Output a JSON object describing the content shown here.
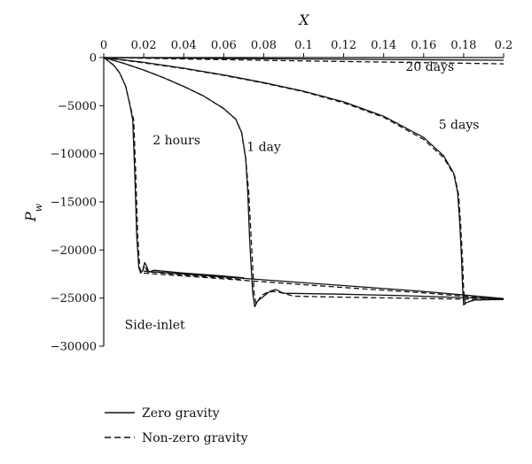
{
  "chart_data": {
    "type": "line",
    "xlabel": "X",
    "ylabel": "P",
    "ylabel_sub": "w",
    "xlim": [
      0,
      0.2
    ],
    "ylim": [
      -30000,
      0
    ],
    "x_axis_position": "top",
    "x_ticks": [
      "0",
      "0.02",
      "0.04",
      "0.06",
      "0.08",
      "0.1",
      "0.12",
      "0.14",
      "0.16",
      "0.18",
      "0.2"
    ],
    "y_ticks": [
      "0",
      "−5000",
      "−10000",
      "−15000",
      "−20000",
      "−25000",
      "−30000"
    ],
    "grid": false,
    "legend_position": "bottom-left",
    "legend": [
      {
        "label": "Zero gravity",
        "style": "solid"
      },
      {
        "label": "Non-zero gravity",
        "style": "dashed"
      }
    ],
    "annotations": [
      {
        "text": "2 hours",
        "x": 0.0245,
        "y": -9000
      },
      {
        "text": "1 day",
        "x": 0.0715,
        "y": -9700
      },
      {
        "text": "5 days",
        "x": 0.1675,
        "y": -7400
      },
      {
        "text": "20 days",
        "x": 0.151,
        "y": -1400
      },
      {
        "text": "Side-inlet",
        "x": 0.0105,
        "y": -28200
      }
    ],
    "series": [
      {
        "group": "2 hours",
        "style": "solid",
        "points": [
          [
            0,
            0
          ],
          [
            0.002,
            -300
          ],
          [
            0.005,
            -800
          ],
          [
            0.008,
            -1600
          ],
          [
            0.011,
            -3000
          ],
          [
            0.013,
            -4800
          ],
          [
            0.0145,
            -6500
          ],
          [
            0.0155,
            -12000
          ],
          [
            0.0165,
            -18500
          ],
          [
            0.0175,
            -21800
          ],
          [
            0.0185,
            -22400
          ],
          [
            0.0195,
            -22100
          ],
          [
            0.0205,
            -21300
          ],
          [
            0.0215,
            -21700
          ],
          [
            0.0225,
            -22300
          ],
          [
            0.025,
            -22100
          ],
          [
            0.04,
            -22400
          ],
          [
            0.06,
            -22700
          ],
          [
            0.07,
            -22900
          ]
        ]
      },
      {
        "group": "2 hours",
        "style": "dashed",
        "points": [
          [
            0,
            0
          ],
          [
            0.002,
            -300
          ],
          [
            0.005,
            -800
          ],
          [
            0.008,
            -1600
          ],
          [
            0.011,
            -3000
          ],
          [
            0.013,
            -4800
          ],
          [
            0.015,
            -6500
          ],
          [
            0.016,
            -12000
          ],
          [
            0.017,
            -18500
          ],
          [
            0.018,
            -21900
          ],
          [
            0.019,
            -22400
          ],
          [
            0.0205,
            -21600
          ],
          [
            0.022,
            -22300
          ],
          [
            0.025,
            -22300
          ],
          [
            0.04,
            -22600
          ],
          [
            0.06,
            -22900
          ],
          [
            0.07,
            -23100
          ]
        ]
      },
      {
        "group": "1 day",
        "style": "solid",
        "points": [
          [
            0,
            0
          ],
          [
            0.01,
            -600
          ],
          [
            0.02,
            -1300
          ],
          [
            0.03,
            -2100
          ],
          [
            0.04,
            -3000
          ],
          [
            0.05,
            -4000
          ],
          [
            0.06,
            -5300
          ],
          [
            0.066,
            -6400
          ],
          [
            0.069,
            -7800
          ],
          [
            0.071,
            -10500
          ],
          [
            0.072,
            -14000
          ],
          [
            0.073,
            -19000
          ],
          [
            0.0745,
            -24500
          ],
          [
            0.0755,
            -25900
          ],
          [
            0.077,
            -25300
          ],
          [
            0.08,
            -24800
          ],
          [
            0.083,
            -24300
          ],
          [
            0.086,
            -24100
          ],
          [
            0.09,
            -24500
          ],
          [
            0.12,
            -24600
          ],
          [
            0.15,
            -24750
          ],
          [
            0.18,
            -24950
          ],
          [
            0.2,
            -25050
          ]
        ]
      },
      {
        "group": "1 day",
        "style": "dashed",
        "points": [
          [
            0,
            0
          ],
          [
            0.01,
            -600
          ],
          [
            0.02,
            -1300
          ],
          [
            0.03,
            -2100
          ],
          [
            0.04,
            -3000
          ],
          [
            0.05,
            -4000
          ],
          [
            0.06,
            -5300
          ],
          [
            0.066,
            -6400
          ],
          [
            0.069,
            -7800
          ],
          [
            0.071,
            -10500
          ],
          [
            0.0725,
            -14000
          ],
          [
            0.0738,
            -19000
          ],
          [
            0.0752,
            -24500
          ],
          [
            0.0762,
            -25600
          ],
          [
            0.079,
            -24700
          ],
          [
            0.082,
            -24400
          ],
          [
            0.085,
            -24300
          ],
          [
            0.09,
            -24500
          ],
          [
            0.095,
            -24800
          ],
          [
            0.12,
            -24900
          ],
          [
            0.15,
            -25000
          ],
          [
            0.18,
            -25100
          ],
          [
            0.2,
            -25150
          ]
        ]
      },
      {
        "group": "5 days",
        "style": "solid",
        "points": [
          [
            0,
            0
          ],
          [
            0.02,
            -500
          ],
          [
            0.04,
            -1100
          ],
          [
            0.06,
            -1800
          ],
          [
            0.08,
            -2600
          ],
          [
            0.1,
            -3500
          ],
          [
            0.12,
            -4600
          ],
          [
            0.14,
            -6100
          ],
          [
            0.16,
            -8300
          ],
          [
            0.17,
            -10200
          ],
          [
            0.175,
            -12000
          ],
          [
            0.177,
            -14000
          ],
          [
            0.178,
            -17000
          ],
          [
            0.179,
            -21000
          ],
          [
            0.1795,
            -24000
          ],
          [
            0.18,
            -25700
          ],
          [
            0.181,
            -25500
          ],
          [
            0.185,
            -25200
          ],
          [
            0.2,
            -25100
          ]
        ]
      },
      {
        "group": "5 days",
        "style": "dashed",
        "points": [
          [
            0,
            0
          ],
          [
            0.02,
            -550
          ],
          [
            0.04,
            -1150
          ],
          [
            0.06,
            -1850
          ],
          [
            0.08,
            -2650
          ],
          [
            0.1,
            -3550
          ],
          [
            0.12,
            -4700
          ],
          [
            0.14,
            -6200
          ],
          [
            0.16,
            -8500
          ],
          [
            0.17,
            -10400
          ],
          [
            0.1755,
            -12300
          ],
          [
            0.1775,
            -14300
          ],
          [
            0.1785,
            -17300
          ],
          [
            0.1795,
            -21300
          ],
          [
            0.18,
            -24200
          ],
          [
            0.1808,
            -25600
          ],
          [
            0.182,
            -25400
          ],
          [
            0.186,
            -25200
          ],
          [
            0.2,
            -25150
          ]
        ]
      },
      {
        "group": "20 days",
        "style": "solid",
        "points": [
          [
            0,
            0
          ],
          [
            0.05,
            -80
          ],
          [
            0.1,
            -150
          ],
          [
            0.15,
            -220
          ],
          [
            0.2,
            -280
          ]
        ]
      },
      {
        "group": "20 days",
        "style": "dashed",
        "points": [
          [
            0,
            0
          ],
          [
            0.05,
            -180
          ],
          [
            0.1,
            -350
          ],
          [
            0.15,
            -500
          ],
          [
            0.2,
            -650
          ]
        ]
      },
      {
        "group": "bottom-line",
        "style": "solid",
        "points": [
          [
            0.02,
            -22200
          ],
          [
            0.07,
            -22950
          ],
          [
            0.12,
            -23700
          ],
          [
            0.16,
            -24300
          ],
          [
            0.2,
            -25050
          ]
        ]
      },
      {
        "group": "bottom-line",
        "style": "dashed",
        "points": [
          [
            0.02,
            -22400
          ],
          [
            0.07,
            -23150
          ],
          [
            0.12,
            -23900
          ],
          [
            0.16,
            -24450
          ],
          [
            0.2,
            -25150
          ]
        ]
      }
    ]
  }
}
